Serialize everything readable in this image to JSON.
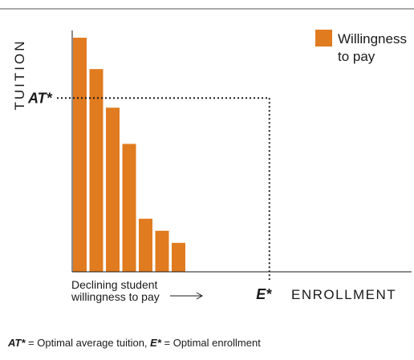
{
  "chart_data": {
    "type": "bar",
    "ylabel": "TUITION",
    "xlabel": "ENROLLMENT",
    "legend": {
      "placement": "top-right",
      "entries": [
        {
          "label_line1": "Willingness",
          "label_line2": "to pay",
          "color": "#E07B1F"
        }
      ]
    },
    "series": [
      {
        "name": "Willingness to pay",
        "color": "#E07B1F",
        "values": [
          97,
          84,
          68,
          53,
          22,
          17,
          12
        ]
      }
    ],
    "ylim": [
      0,
      100
    ],
    "xlim": [
      0,
      100
    ],
    "annotations": {
      "at_star": {
        "text": "AT*",
        "value": 72
      },
      "e_star": {
        "text": "E*",
        "value": 58
      },
      "arrow_note": {
        "line1": "Declining student",
        "line2": "willingness to pay"
      }
    },
    "footnote": {
      "part1": "AT*",
      "part2": " = Optimal average tuition, ",
      "part3": "E*",
      "part4": " = Optimal enrollment"
    }
  }
}
